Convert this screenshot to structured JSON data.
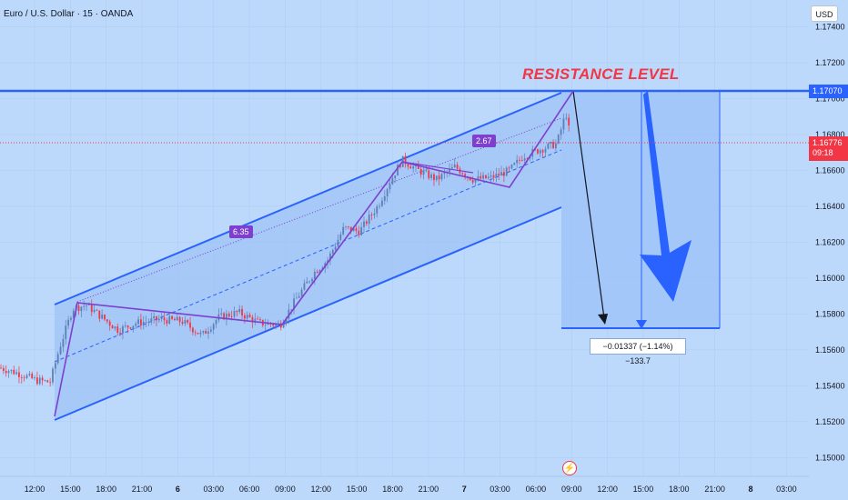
{
  "header": {
    "symbol_title": "Euro / U.S. Dollar · 15 · OANDA",
    "currency_button": "USD"
  },
  "annotations": {
    "resistance_label": "RESISTANCE LEVEL",
    "channel_label_1": "6.35",
    "channel_label_2": "2.67",
    "measure_text": "−0.01337 (−1.14%) −133.7",
    "resistance_tag": "1.17070",
    "last_price_tag": "1.16776",
    "countdown": "09:18"
  },
  "colors": {
    "background": "#bcd9fb",
    "up_candle": "#5d7fb8",
    "down_candle": "#f23645",
    "channel_line": "#2962ff",
    "pattern_line": "#7e3fcf"
  },
  "icons": {
    "bolt": "lightning-icon"
  },
  "chart_data": {
    "type": "candlestick",
    "title": "Euro / U.S. Dollar · 15 · OANDA",
    "y_axis": {
      "range": [
        1.149,
        1.1755
      ],
      "ticks": [
        "1.17400",
        "1.17200",
        "1.17000",
        "1.16800",
        "1.16600",
        "1.16400",
        "1.16200",
        "1.16000",
        "1.15800",
        "1.15600",
        "1.15400",
        "1.15200",
        "1.15000"
      ]
    },
    "x_axis": {
      "ticks": [
        "12:00",
        "15:00",
        "18:00",
        "21:00",
        "6",
        "03:00",
        "06:00",
        "09:00",
        "12:00",
        "15:00",
        "18:00",
        "21:00",
        "7",
        "03:00",
        "06:00",
        "09:00",
        "12:00",
        "15:00",
        "18:00",
        "21:00",
        "8",
        "03:00"
      ]
    },
    "resistance_level": 1.1707,
    "last_price": 1.16776,
    "projected_target": 1.1573,
    "projected_move": "−0.01337 (−1.14%) −133.7",
    "price_path": [
      [
        0,
        1.155
      ],
      [
        20,
        1.1547
      ],
      [
        40,
        1.1543
      ],
      [
        55,
        1.1542
      ],
      [
        66,
        1.1562
      ],
      [
        80,
        1.1583
      ],
      [
        95,
        1.1585
      ],
      [
        110,
        1.1579
      ],
      [
        130,
        1.1571
      ],
      [
        150,
        1.1575
      ],
      [
        175,
        1.1577
      ],
      [
        200,
        1.1576
      ],
      [
        222,
        1.1568
      ],
      [
        240,
        1.1578
      ],
      [
        262,
        1.1581
      ],
      [
        285,
        1.1575
      ],
      [
        308,
        1.1574
      ],
      [
        325,
        1.1588
      ],
      [
        345,
        1.1603
      ],
      [
        360,
        1.161
      ],
      [
        378,
        1.1628
      ],
      [
        395,
        1.1626
      ],
      [
        415,
        1.164
      ],
      [
        430,
        1.1655
      ],
      [
        442,
        1.1666
      ],
      [
        460,
        1.166
      ],
      [
        480,
        1.1655
      ],
      [
        500,
        1.1662
      ],
      [
        520,
        1.1655
      ],
      [
        540,
        1.1656
      ],
      [
        560,
        1.166
      ],
      [
        575,
        1.1668
      ],
      [
        595,
        1.1672
      ],
      [
        612,
        1.1675
      ],
      [
        622,
        1.1692
      ],
      [
        627,
        1.1678
      ]
    ]
  }
}
